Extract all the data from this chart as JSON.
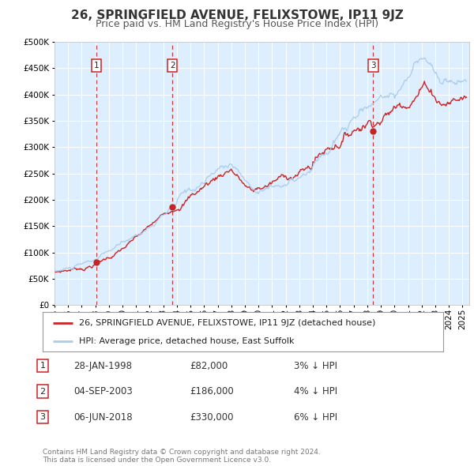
{
  "title": "26, SPRINGFIELD AVENUE, FELIXSTOWE, IP11 9JZ",
  "subtitle": "Price paid vs. HM Land Registry's House Price Index (HPI)",
  "ylim": [
    0,
    500000
  ],
  "yticks": [
    0,
    50000,
    100000,
    150000,
    200000,
    250000,
    300000,
    350000,
    400000,
    450000,
    500000
  ],
  "xlim_start": 1995.0,
  "xlim_end": 2025.5,
  "background_color": "#ffffff",
  "plot_bg_color": "#ddeeff",
  "grid_color": "#ffffff",
  "sale_dates": [
    1998.08,
    2003.67,
    2018.44
  ],
  "sale_prices": [
    82000,
    186000,
    330000
  ],
  "sale_labels": [
    "1",
    "2",
    "3"
  ],
  "sale_line_color": "#cc2222",
  "hpi_line_color": "#aaccee",
  "legend_entries": [
    "26, SPRINGFIELD AVENUE, FELIXSTOWE, IP11 9JZ (detached house)",
    "HPI: Average price, detached house, East Suffolk"
  ],
  "table_rows": [
    [
      "1",
      "28-JAN-1998",
      "£82,000",
      "3% ↓ HPI"
    ],
    [
      "2",
      "04-SEP-2003",
      "£186,000",
      "4% ↓ HPI"
    ],
    [
      "3",
      "06-JUN-2018",
      "£330,000",
      "6% ↓ HPI"
    ]
  ],
  "footnote": "Contains HM Land Registry data © Crown copyright and database right 2024.\nThis data is licensed under the Open Government Licence v3.0.",
  "title_fontsize": 11,
  "subtitle_fontsize": 9,
  "tick_fontsize": 7.5,
  "legend_fontsize": 8,
  "table_fontsize": 8.5,
  "footnote_fontsize": 6.5
}
